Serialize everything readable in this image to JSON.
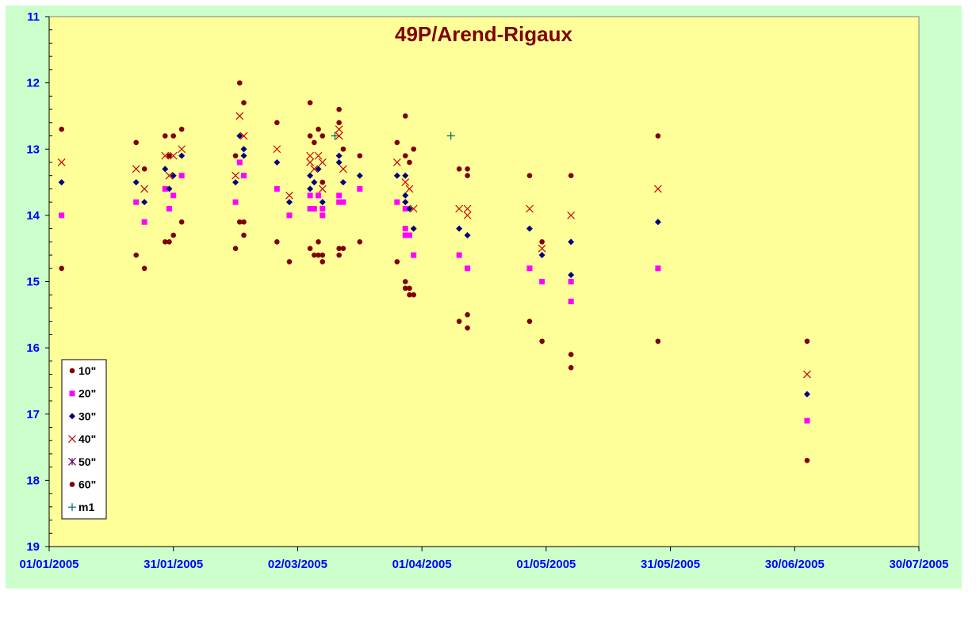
{
  "chart_data": {
    "type": "scatter",
    "title": "49P/Arend-Rigaux",
    "xlabel": "",
    "ylabel": "",
    "x_ticks": [
      "01/01/2005",
      "31/01/2005",
      "02/03/2005",
      "01/04/2005",
      "01/05/2005",
      "31/05/2005",
      "30/06/2005",
      "30/07/2005"
    ],
    "xlim": [
      "01/01/2005",
      "30/07/2005"
    ],
    "y_ticks": [
      "11",
      "12",
      "13",
      "14",
      "15",
      "16",
      "17",
      "18",
      "19"
    ],
    "ylim": [
      11,
      19
    ],
    "y_reversed": true,
    "grid": false,
    "legend_position": "bottom-left",
    "colors": {
      "outer_bg": "#ccffcc",
      "plot_bg": "#ffff99",
      "title": "#800000",
      "axis_text": "#0000ff",
      "tick_color": "#000000"
    },
    "series": [
      {
        "name": "10\"",
        "marker": "circle",
        "color": "#800000",
        "points": [
          [
            "04/01/2005",
            12.7
          ],
          [
            "04/01/2005",
            14.8
          ],
          [
            "22/01/2005",
            12.9
          ],
          [
            "22/01/2005",
            14.6
          ],
          [
            "24/01/2005",
            13.3
          ],
          [
            "24/01/2005",
            14.8
          ],
          [
            "29/01/2005",
            12.8
          ],
          [
            "29/01/2005",
            14.4
          ],
          [
            "30/01/2005",
            13.1
          ],
          [
            "30/01/2005",
            14.4
          ],
          [
            "31/01/2005",
            12.8
          ],
          [
            "31/01/2005",
            14.3
          ],
          [
            "02/02/2005",
            12.7
          ],
          [
            "02/02/2005",
            14.1
          ],
          [
            "15/02/2005",
            13.1
          ],
          [
            "15/02/2005",
            14.5
          ],
          [
            "16/02/2005",
            12.0
          ],
          [
            "16/02/2005",
            14.1
          ],
          [
            "17/02/2005",
            12.3
          ],
          [
            "17/02/2005",
            14.1
          ],
          [
            "17/02/2005",
            14.3
          ],
          [
            "25/02/2005",
            12.6
          ],
          [
            "25/02/2005",
            14.4
          ],
          [
            "28/02/2005",
            14.7
          ],
          [
            "05/03/2005",
            12.3
          ],
          [
            "05/03/2005",
            12.8
          ],
          [
            "05/03/2005",
            14.5
          ],
          [
            "06/03/2005",
            12.9
          ],
          [
            "06/03/2005",
            14.6
          ],
          [
            "07/03/2005",
            12.7
          ],
          [
            "07/03/2005",
            14.6
          ],
          [
            "07/03/2005",
            14.4
          ],
          [
            "08/03/2005",
            12.8
          ],
          [
            "08/03/2005",
            13.5
          ],
          [
            "08/03/2005",
            14.6
          ],
          [
            "08/03/2005",
            14.7
          ],
          [
            "12/03/2005",
            12.4
          ],
          [
            "12/03/2005",
            12.6
          ],
          [
            "12/03/2005",
            14.5
          ],
          [
            "12/03/2005",
            14.6
          ],
          [
            "13/03/2005",
            13.0
          ],
          [
            "13/03/2005",
            14.5
          ],
          [
            "17/03/2005",
            13.1
          ],
          [
            "17/03/2005",
            14.4
          ],
          [
            "26/03/2005",
            12.9
          ],
          [
            "26/03/2005",
            14.7
          ],
          [
            "28/03/2005",
            12.5
          ],
          [
            "28/03/2005",
            13.1
          ],
          [
            "28/03/2005",
            15.0
          ],
          [
            "28/03/2005",
            15.1
          ],
          [
            "29/03/2005",
            13.2
          ],
          [
            "29/03/2005",
            15.1
          ],
          [
            "29/03/2005",
            15.2
          ],
          [
            "30/03/2005",
            13.0
          ],
          [
            "30/03/2005",
            15.2
          ],
          [
            "10/04/2005",
            13.3
          ],
          [
            "10/04/2005",
            15.6
          ],
          [
            "12/04/2005",
            13.3
          ],
          [
            "12/04/2005",
            13.4
          ],
          [
            "12/04/2005",
            15.5
          ],
          [
            "12/04/2005",
            15.7
          ],
          [
            "27/04/2005",
            13.4
          ],
          [
            "27/04/2005",
            15.6
          ],
          [
            "30/04/2005",
            14.4
          ],
          [
            "30/04/2005",
            15.9
          ],
          [
            "07/05/2005",
            13.4
          ],
          [
            "07/05/2005",
            16.1
          ],
          [
            "07/05/2005",
            16.3
          ],
          [
            "28/05/2005",
            12.8
          ],
          [
            "28/05/2005",
            15.9
          ],
          [
            "03/07/2005",
            15.9
          ],
          [
            "03/07/2005",
            17.7
          ]
        ]
      },
      {
        "name": "20\"",
        "marker": "square",
        "color": "#ff00ff",
        "points": [
          [
            "04/01/2005",
            14.0
          ],
          [
            "22/01/2005",
            13.8
          ],
          [
            "24/01/2005",
            14.1
          ],
          [
            "29/01/2005",
            13.6
          ],
          [
            "30/01/2005",
            13.9
          ],
          [
            "31/01/2005",
            13.7
          ],
          [
            "02/02/2005",
            13.4
          ],
          [
            "15/02/2005",
            13.8
          ],
          [
            "16/02/2005",
            13.2
          ],
          [
            "17/02/2005",
            13.4
          ],
          [
            "25/02/2005",
            13.6
          ],
          [
            "28/02/2005",
            14.0
          ],
          [
            "05/03/2005",
            13.7
          ],
          [
            "05/03/2005",
            13.9
          ],
          [
            "06/03/2005",
            13.9
          ],
          [
            "07/03/2005",
            13.7
          ],
          [
            "08/03/2005",
            13.9
          ],
          [
            "08/03/2005",
            14.0
          ],
          [
            "12/03/2005",
            13.7
          ],
          [
            "12/03/2005",
            13.8
          ],
          [
            "13/03/2005",
            13.8
          ],
          [
            "17/03/2005",
            13.6
          ],
          [
            "26/03/2005",
            13.8
          ],
          [
            "28/03/2005",
            13.9
          ],
          [
            "28/03/2005",
            14.2
          ],
          [
            "28/03/2005",
            14.3
          ],
          [
            "29/03/2005",
            14.3
          ],
          [
            "30/03/2005",
            14.6
          ],
          [
            "10/04/2005",
            14.6
          ],
          [
            "12/04/2005",
            14.8
          ],
          [
            "27/04/2005",
            14.8
          ],
          [
            "30/04/2005",
            15.0
          ],
          [
            "07/05/2005",
            15.0
          ],
          [
            "07/05/2005",
            15.3
          ],
          [
            "28/05/2005",
            14.8
          ],
          [
            "03/07/2005",
            17.1
          ]
        ]
      },
      {
        "name": "30\"",
        "marker": "diamond",
        "color": "#000080",
        "points": [
          [
            "04/01/2005",
            13.5
          ],
          [
            "22/01/2005",
            13.5
          ],
          [
            "24/01/2005",
            13.8
          ],
          [
            "29/01/2005",
            13.3
          ],
          [
            "30/01/2005",
            13.6
          ],
          [
            "31/01/2005",
            13.4
          ],
          [
            "02/02/2005",
            13.1
          ],
          [
            "15/02/2005",
            13.5
          ],
          [
            "16/02/2005",
            12.8
          ],
          [
            "17/02/2005",
            13.0
          ],
          [
            "17/02/2005",
            13.1
          ],
          [
            "25/02/2005",
            13.2
          ],
          [
            "28/02/2005",
            13.8
          ],
          [
            "05/03/2005",
            13.4
          ],
          [
            "05/03/2005",
            13.6
          ],
          [
            "06/03/2005",
            13.5
          ],
          [
            "07/03/2005",
            13.3
          ],
          [
            "08/03/2005",
            13.8
          ],
          [
            "12/03/2005",
            13.1
          ],
          [
            "12/03/2005",
            13.2
          ],
          [
            "13/03/2005",
            13.5
          ],
          [
            "17/03/2005",
            13.4
          ],
          [
            "26/03/2005",
            13.4
          ],
          [
            "28/03/2005",
            13.4
          ],
          [
            "28/03/2005",
            13.7
          ],
          [
            "28/03/2005",
            13.8
          ],
          [
            "29/03/2005",
            13.9
          ],
          [
            "30/03/2005",
            14.2
          ],
          [
            "10/04/2005",
            14.2
          ],
          [
            "12/04/2005",
            14.3
          ],
          [
            "27/04/2005",
            14.2
          ],
          [
            "30/04/2005",
            14.6
          ],
          [
            "07/05/2005",
            14.4
          ],
          [
            "07/05/2005",
            14.9
          ],
          [
            "28/05/2005",
            14.1
          ],
          [
            "03/07/2005",
            16.7
          ]
        ]
      },
      {
        "name": "40\"",
        "marker": "x",
        "color": "#cc0000",
        "points": [
          [
            "04/01/2005",
            13.2
          ],
          [
            "22/01/2005",
            13.3
          ],
          [
            "24/01/2005",
            13.6
          ],
          [
            "29/01/2005",
            13.1
          ],
          [
            "30/01/2005",
            13.4
          ],
          [
            "31/01/2005",
            13.1
          ],
          [
            "02/02/2005",
            13.0
          ],
          [
            "15/02/2005",
            13.4
          ],
          [
            "16/02/2005",
            12.5
          ],
          [
            "17/02/2005",
            12.8
          ],
          [
            "25/02/2005",
            13.0
          ],
          [
            "28/02/2005",
            13.7
          ],
          [
            "05/03/2005",
            13.1
          ],
          [
            "05/03/2005",
            13.2
          ],
          [
            "06/03/2005",
            13.3
          ],
          [
            "07/03/2005",
            13.1
          ],
          [
            "08/03/2005",
            13.2
          ],
          [
            "08/03/2005",
            13.6
          ],
          [
            "12/03/2005",
            12.7
          ],
          [
            "12/03/2005",
            12.8
          ],
          [
            "13/03/2005",
            13.3
          ],
          [
            "26/03/2005",
            13.2
          ],
          [
            "28/03/2005",
            13.5
          ],
          [
            "29/03/2005",
            13.6
          ],
          [
            "30/03/2005",
            13.9
          ],
          [
            "10/04/2005",
            13.9
          ],
          [
            "12/04/2005",
            13.9
          ],
          [
            "12/04/2005",
            14.0
          ],
          [
            "27/04/2005",
            13.9
          ],
          [
            "30/04/2005",
            14.5
          ],
          [
            "07/05/2005",
            14.0
          ],
          [
            "28/05/2005",
            13.6
          ],
          [
            "03/07/2005",
            16.4
          ]
        ]
      },
      {
        "name": "50\"",
        "marker": "star",
        "color": "#660066",
        "points": []
      },
      {
        "name": "60\"",
        "marker": "circle",
        "color": "#800000",
        "points": []
      },
      {
        "name": "m1",
        "marker": "plus",
        "color": "#006666",
        "points": [
          [
            "11/03/2005",
            12.8
          ],
          [
            "08/04/2005",
            12.8
          ]
        ]
      }
    ]
  }
}
